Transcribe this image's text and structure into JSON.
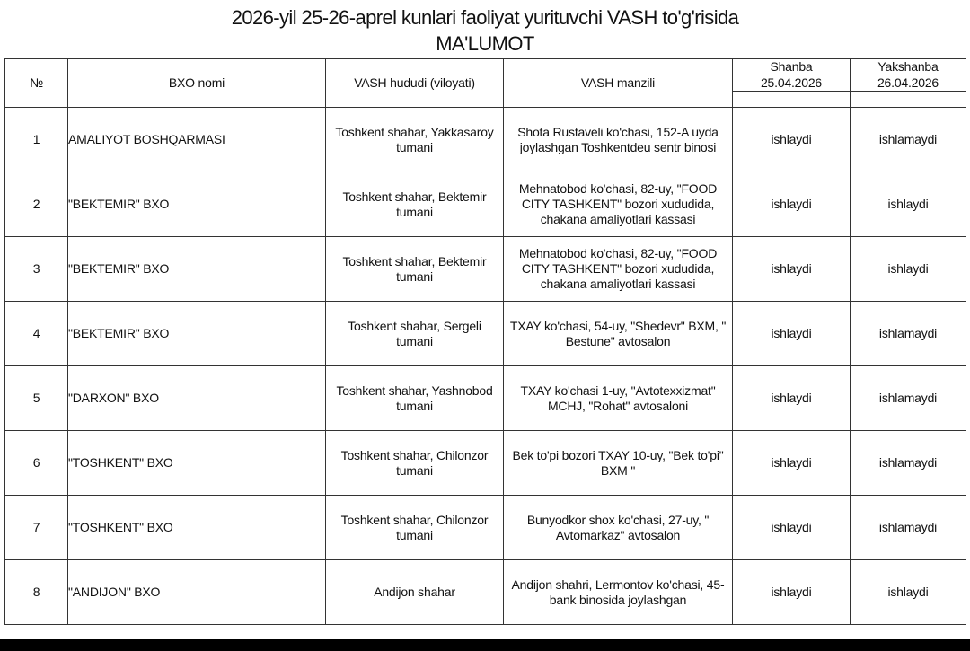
{
  "title_line1": "2026-yil 25-26-aprel kunlari faoliyat yurituvchi VASH to'g'risida",
  "title_line2": "MA'LUMOT",
  "headers": {
    "no": "№",
    "name": "BXO nomi",
    "region": "VASH hududi (viloyati)",
    "address": "VASH manzili",
    "day1": "Shanba",
    "date1": "25.04.2026",
    "day2": "Yakshanba",
    "date2": "26.04.2026"
  },
  "rows": [
    {
      "no": "1",
      "name": "AMALIYOT BOSHQARMASI",
      "region": "Toshkent shahar, Yakkasaroy tumani",
      "address": "Shota Rustaveli ko'chasi, 152-A uyda joylashgan Toshkentdeu sentr binosi",
      "sat": "ishlaydi",
      "sun": "ishlamaydi"
    },
    {
      "no": "2",
      "name": "\"BEKTEMIR\" BXO",
      "region": "Toshkent shahar, Bektemir tumani",
      "address": "Mehnatobod ko'chasi, 82-uy, \"FOOD CITY TASHKENT\" bozori xududida, chakana amaliyotlari kassasi",
      "sat": "ishlaydi",
      "sun": "ishlaydi"
    },
    {
      "no": "3",
      "name": "\"BEKTEMIR\" BXO",
      "region": "Toshkent shahar, Bektemir tumani",
      "address": "Mehnatobod ko'chasi, 82-uy, \"FOOD CITY TASHKENT\" bozori xududida, chakana amaliyotlari kassasi",
      "sat": "ishlaydi",
      "sun": "ishlaydi"
    },
    {
      "no": "4",
      "name": "\"BEKTEMIR\" BXO",
      "region": "Toshkent shahar, Sergeli tumani",
      "address": "TXAY ko'chasi, 54-uy, \"Shedevr\" BXM, \" Bestune\" avtosalon",
      "sat": "ishlaydi",
      "sun": "ishlamaydi"
    },
    {
      "no": "5",
      "name": "\"DARXON\" BXO",
      "region": "Toshkent shahar, Yashnobod tumani",
      "address": "TXAY ko'chasi 1-uy, \"Avtotexxizmat\" MCHJ, \"Rohat\" avtosaloni",
      "sat": "ishlaydi",
      "sun": "ishlamaydi"
    },
    {
      "no": "6",
      "name": "\"TOSHKENT\" BXO",
      "region": "Toshkent shahar, Chilonzor tumani",
      "address": "Bek to'pi bozori TXAY 10-uy, \"Bek to'pi\" BXM \"",
      "sat": "ishlaydi",
      "sun": "ishlamaydi"
    },
    {
      "no": "7",
      "name": "\"TOSHKENT\" BXO",
      "region": "Toshkent shahar, Chilonzor tumani",
      "address": "Bunyodkor shox ko'chasi, 27-uy, \" Avtomarkaz\" avtosalon",
      "sat": "ishlaydi",
      "sun": "ishlamaydi"
    },
    {
      "no": "8",
      "name": "\"ANDIJON\"  BXO",
      "region": "Andijon shahar",
      "address": "Andijon shahri, Lermontov ko'chasi, 45-bank binosida joylashgan",
      "sat": "ishlaydi",
      "sun": "ishlaydi"
    }
  ]
}
